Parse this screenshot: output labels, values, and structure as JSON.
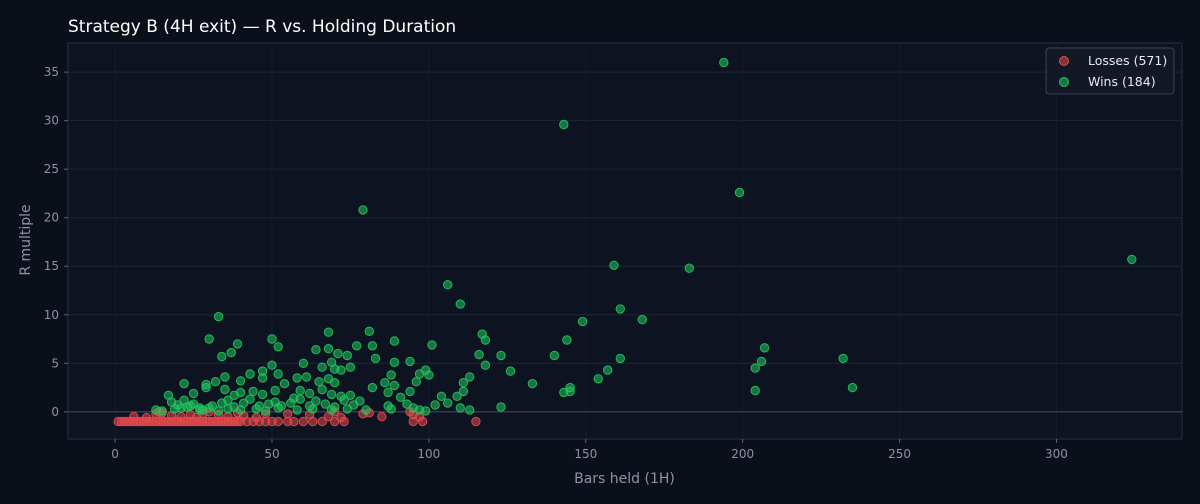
{
  "chart_data": {
    "type": "scatter",
    "title": "Strategy B (4H exit) — R vs. Holding Duration",
    "xlabel": "Bars held (1H)",
    "ylabel": "R multiple",
    "xlim": [
      -15,
      340
    ],
    "ylim": [
      -2.8,
      38
    ],
    "xticks": [
      0,
      50,
      100,
      150,
      200,
      250,
      300
    ],
    "yticks": [
      0,
      5,
      10,
      15,
      20,
      25,
      30,
      35
    ],
    "grid": true,
    "legend_position": "top-right",
    "background": "#0b0f19",
    "plot_background": "#0d1320",
    "series": [
      {
        "name": "Losses (571)",
        "color": "#e5484d",
        "points": [
          [
            1,
            -1
          ],
          [
            2,
            -1
          ],
          [
            3,
            -1
          ],
          [
            4,
            -1
          ],
          [
            5,
            -1
          ],
          [
            6,
            -1
          ],
          [
            7,
            -1
          ],
          [
            8,
            -1
          ],
          [
            9,
            -1
          ],
          [
            10,
            -1
          ],
          [
            11,
            -1
          ],
          [
            12,
            -1
          ],
          [
            13,
            -1
          ],
          [
            14,
            -1
          ],
          [
            15,
            -1
          ],
          [
            16,
            -1
          ],
          [
            17,
            -1
          ],
          [
            18,
            -1
          ],
          [
            19,
            -1
          ],
          [
            20,
            -1
          ],
          [
            21,
            -1
          ],
          [
            22,
            -1
          ],
          [
            23,
            -1
          ],
          [
            24,
            -1
          ],
          [
            25,
            -1
          ],
          [
            26,
            -1
          ],
          [
            27,
            -1
          ],
          [
            28,
            -1
          ],
          [
            29,
            -1
          ],
          [
            30,
            -1
          ],
          [
            31,
            -1
          ],
          [
            32,
            -1
          ],
          [
            33,
            -1
          ],
          [
            34,
            -1
          ],
          [
            35,
            -1
          ],
          [
            36,
            -1
          ],
          [
            37,
            -1
          ],
          [
            38,
            -1
          ],
          [
            39,
            -1
          ],
          [
            40,
            -1
          ],
          [
            42,
            -1
          ],
          [
            44,
            -1
          ],
          [
            46,
            -1
          ],
          [
            48,
            -1
          ],
          [
            50,
            -1
          ],
          [
            52,
            -1
          ],
          [
            55,
            -1
          ],
          [
            57,
            -1
          ],
          [
            60,
            -1
          ],
          [
            63,
            -1
          ],
          [
            66,
            -1
          ],
          [
            70,
            -1
          ],
          [
            73,
            -1
          ],
          [
            95,
            -1
          ],
          [
            98,
            -1
          ],
          [
            115,
            -1
          ],
          [
            6,
            -0.5
          ],
          [
            10,
            -0.6
          ],
          [
            13,
            -0.2
          ],
          [
            14,
            0
          ],
          [
            15,
            -0.1
          ],
          [
            18,
            -0.4
          ],
          [
            21,
            -0.5
          ],
          [
            24,
            -0.3
          ],
          [
            26,
            -0.6
          ],
          [
            28,
            -0.2
          ],
          [
            30,
            0
          ],
          [
            33,
            -0.3
          ],
          [
            36,
            -0.5
          ],
          [
            39,
            -0.1
          ],
          [
            41,
            -0.4
          ],
          [
            45,
            -0.6
          ],
          [
            48,
            -0.2
          ],
          [
            55,
            -0.2
          ],
          [
            62,
            -0.3
          ],
          [
            68,
            -0.5
          ],
          [
            70,
            0
          ],
          [
            72,
            -0.6
          ],
          [
            79,
            -0.2
          ],
          [
            81,
            -0.1
          ],
          [
            85,
            -0.5
          ],
          [
            94,
            0
          ],
          [
            95,
            -0.3
          ],
          [
            97,
            -0.5
          ]
        ]
      },
      {
        "name": "Wins (184)",
        "color": "#22c55e",
        "points": [
          [
            194,
            36
          ],
          [
            143,
            29.6
          ],
          [
            199,
            22.6
          ],
          [
            79,
            20.8
          ],
          [
            324,
            15.7
          ],
          [
            159,
            15.1
          ],
          [
            183,
            14.8
          ],
          [
            106,
            13.1
          ],
          [
            110,
            11.1
          ],
          [
            161,
            10.6
          ],
          [
            33,
            9.8
          ],
          [
            149,
            9.3
          ],
          [
            168,
            9.5
          ],
          [
            68,
            8.2
          ],
          [
            81,
            8.3
          ],
          [
            117,
            8
          ],
          [
            30,
            7.5
          ],
          [
            50,
            7.5
          ],
          [
            89,
            7.3
          ],
          [
            118,
            7.4
          ],
          [
            144,
            7.4
          ],
          [
            207,
            6.6
          ],
          [
            39,
            7
          ],
          [
            52,
            6.7
          ],
          [
            64,
            6.4
          ],
          [
            68,
            6.5
          ],
          [
            71,
            6
          ],
          [
            74,
            5.8
          ],
          [
            77,
            6.8
          ],
          [
            82,
            6.8
          ],
          [
            101,
            6.9
          ],
          [
            116,
            5.9
          ],
          [
            123,
            5.8
          ],
          [
            140,
            5.8
          ],
          [
            161,
            5.5
          ],
          [
            206,
            5.2
          ],
          [
            232,
            5.5
          ],
          [
            34,
            5.7
          ],
          [
            37,
            6.1
          ],
          [
            47,
            4.2
          ],
          [
            50,
            4.8
          ],
          [
            60,
            5
          ],
          [
            66,
            4.6
          ],
          [
            69,
            5.1
          ],
          [
            70,
            4.4
          ],
          [
            72,
            4.3
          ],
          [
            75,
            4.6
          ],
          [
            83,
            5.5
          ],
          [
            89,
            5.1
          ],
          [
            94,
            5.2
          ],
          [
            97,
            3.9
          ],
          [
            99,
            4.3
          ],
          [
            113,
            3.6
          ],
          [
            118,
            4.8
          ],
          [
            126,
            4.2
          ],
          [
            157,
            4.3
          ],
          [
            204,
            4.5
          ],
          [
            29,
            2.8
          ],
          [
            32,
            3.1
          ],
          [
            35,
            3.6
          ],
          [
            40,
            3.2
          ],
          [
            43,
            3.9
          ],
          [
            47,
            3.5
          ],
          [
            52,
            3.9
          ],
          [
            58,
            3.5
          ],
          [
            61,
            3.6
          ],
          [
            65,
            3.1
          ],
          [
            68,
            3.4
          ],
          [
            70,
            3
          ],
          [
            86,
            3
          ],
          [
            88,
            3.8
          ],
          [
            96,
            3.1
          ],
          [
            100,
            3.8
          ],
          [
            111,
            3
          ],
          [
            133,
            2.9
          ],
          [
            145,
            2.5
          ],
          [
            154,
            3.4
          ],
          [
            22,
            2.9
          ],
          [
            25,
            1.9
          ],
          [
            29,
            2.5
          ],
          [
            35,
            2.3
          ],
          [
            38,
            1.7
          ],
          [
            40,
            2
          ],
          [
            44,
            2.1
          ],
          [
            47,
            1.8
          ],
          [
            51,
            2.2
          ],
          [
            54,
            2.9
          ],
          [
            57,
            1.4
          ],
          [
            59,
            2.2
          ],
          [
            62,
            1.9
          ],
          [
            66,
            2.3
          ],
          [
            69,
            1.8
          ],
          [
            72,
            1.6
          ],
          [
            75,
            1.7
          ],
          [
            82,
            2.5
          ],
          [
            87,
            2
          ],
          [
            89,
            2.7
          ],
          [
            91,
            1.5
          ],
          [
            94,
            2.1
          ],
          [
            104,
            1.6
          ],
          [
            109,
            1.6
          ],
          [
            111,
            2.1
          ],
          [
            143,
            2
          ],
          [
            145,
            2.1
          ],
          [
            204,
            2.2
          ],
          [
            235,
            2.5
          ],
          [
            17,
            1.7
          ],
          [
            18,
            1
          ],
          [
            20,
            0.7
          ],
          [
            22,
            1.2
          ],
          [
            23,
            0.5
          ],
          [
            25,
            0.8
          ],
          [
            27,
            0.4
          ],
          [
            28,
            0.2
          ],
          [
            31,
            0.6
          ],
          [
            34,
            0.9
          ],
          [
            36,
            1.2
          ],
          [
            38,
            0.5
          ],
          [
            41,
            0.9
          ],
          [
            43,
            1.3
          ],
          [
            46,
            0.6
          ],
          [
            49,
            0.8
          ],
          [
            51,
            1
          ],
          [
            53,
            0.6
          ],
          [
            56,
            0.9
          ],
          [
            59,
            1.3
          ],
          [
            62,
            0.6
          ],
          [
            64,
            1.1
          ],
          [
            67,
            0.8
          ],
          [
            70,
            0.5
          ],
          [
            73,
            1.2
          ],
          [
            76,
            0.7
          ],
          [
            78,
            1.1
          ],
          [
            87,
            0.6
          ],
          [
            93,
            0.8
          ],
          [
            95,
            0.4
          ],
          [
            99,
            0.1
          ],
          [
            102,
            0.7
          ],
          [
            106,
            0.9
          ],
          [
            110,
            0.4
          ],
          [
            113,
            0.2
          ],
          [
            123,
            0.5
          ],
          [
            13,
            0.2
          ],
          [
            15,
            0.1
          ],
          [
            19,
            0.3
          ],
          [
            21,
            0.4
          ],
          [
            24,
            0.6
          ],
          [
            27,
            0.2
          ],
          [
            30,
            0.4
          ],
          [
            33,
            0.1
          ],
          [
            36,
            0.3
          ],
          [
            40,
            0.2
          ],
          [
            45,
            0.3
          ],
          [
            48,
            0.1
          ],
          [
            52,
            0.4
          ],
          [
            58,
            0.2
          ],
          [
            63,
            0.3
          ],
          [
            69,
            0.2
          ],
          [
            74,
            0.3
          ],
          [
            80,
            0.2
          ],
          [
            88,
            0.3
          ],
          [
            97,
            0.2
          ]
        ]
      }
    ]
  }
}
